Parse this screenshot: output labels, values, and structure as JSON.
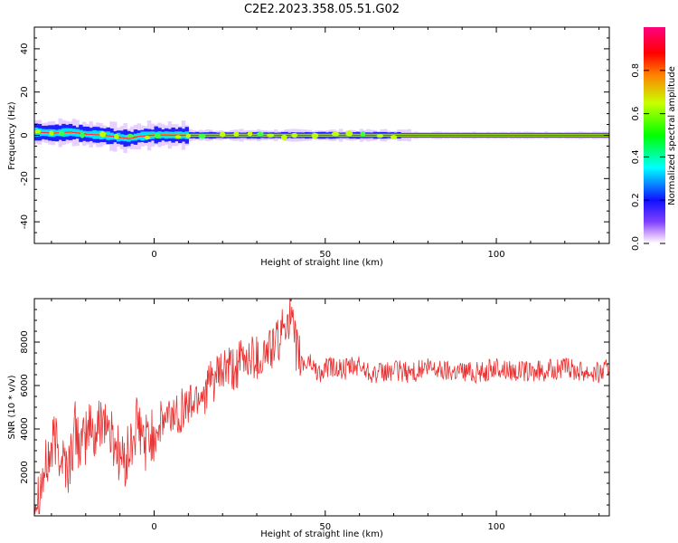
{
  "title": "C2E2.2023.358.05.51.G02",
  "chart_data": [
    {
      "type": "heatmap",
      "xlabel": "Height of straight line (km)",
      "ylabel": "Frequency (Hz)",
      "xlim": [
        -35,
        133
      ],
      "ylim": [
        -50,
        50
      ],
      "x_ticks": [
        0,
        50,
        100
      ],
      "y_ticks": [
        -40,
        -20,
        0,
        20,
        40
      ],
      "colorbar": {
        "label": "Normalized spectral amplitude",
        "range": [
          0,
          1
        ],
        "ticks": [
          "0.0",
          "0.2",
          "0.4",
          "0.6",
          "0.8"
        ],
        "colors": [
          "#ffffff",
          "#b070ff",
          "#2020ff",
          "#00e0ff",
          "#00ff40",
          "#c0ff00",
          "#ff8000",
          "#ff0040",
          "#ff0080"
        ]
      },
      "ridge": {
        "description_points": [
          [
            -35,
            1.5
          ],
          [
            -30,
            1.0
          ],
          [
            -25,
            1.5
          ],
          [
            -20,
            0.5
          ],
          [
            -15,
            0.0
          ],
          [
            -8,
            -1.5
          ],
          [
            -5,
            -0.5
          ],
          [
            0,
            0.2
          ],
          [
            10,
            0.0
          ],
          [
            50,
            0.0
          ],
          [
            100,
            0.0
          ],
          [
            133,
            0.0
          ]
        ]
      }
    },
    {
      "type": "line",
      "xlabel": "Height of straight line (km)",
      "ylabel": "SNR (10 * v/v)",
      "xlim": [
        -35,
        133
      ],
      "ylim": [
        0,
        10000
      ],
      "x_ticks": [
        0,
        50,
        100
      ],
      "y_ticks": [
        2000,
        4000,
        6000,
        8000
      ],
      "color": "#e83030",
      "series": [
        {
          "x": [
            -35,
            -33,
            -31,
            -29,
            -27,
            -25,
            -23,
            -21,
            -19,
            -17,
            -15,
            -13,
            -11,
            -9,
            -7,
            -5,
            -3,
            -1,
            1,
            3,
            5,
            7,
            9,
            11,
            13,
            15,
            17,
            19,
            21,
            23,
            25,
            27,
            29,
            31,
            33,
            35,
            37,
            38,
            39,
            40,
            41,
            43,
            45,
            47,
            49,
            51,
            55,
            60,
            65,
            70,
            75,
            80,
            85,
            90,
            95,
            100,
            105,
            110,
            115,
            120,
            125,
            130,
            133
          ],
          "y": [
            800,
            1500,
            2500,
            3500,
            2800,
            2200,
            4000,
            3000,
            4200,
            3600,
            4800,
            3800,
            3200,
            2400,
            3000,
            4200,
            3400,
            3600,
            4000,
            4400,
            4600,
            4800,
            5000,
            5200,
            5600,
            5800,
            6200,
            6400,
            6800,
            6600,
            7000,
            7200,
            7400,
            7200,
            7600,
            7800,
            8200,
            8800,
            9300,
            9000,
            8000,
            7000,
            7200,
            6800,
            6500,
            6900,
            6700,
            6900,
            6500,
            6700,
            6600,
            6800,
            6700,
            6700,
            6600,
            6800,
            6700,
            6600,
            6700,
            6800,
            6700,
            6600,
            6800
          ]
        }
      ]
    }
  ]
}
